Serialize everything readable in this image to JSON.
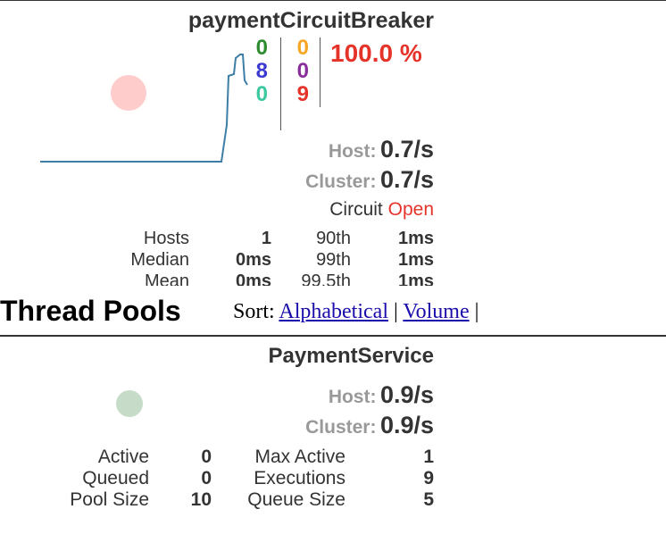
{
  "circuit_breaker": {
    "title": "paymentCircuitBreaker",
    "counts": {
      "success": "0",
      "short_circuited": "8",
      "bad_request": "0",
      "timeout": "0",
      "rejected": "0",
      "failure": "9"
    },
    "error_percentage": "100.0 %",
    "host_label": "Host:",
    "host_rate": "0.7/s",
    "cluster_label": "Cluster:",
    "cluster_rate": "0.7/s",
    "circuit_label": "Circuit",
    "circuit_status": "Open",
    "stats": {
      "hosts_label": "Hosts",
      "hosts_value": "1",
      "median_label": "Median",
      "median_value": "0ms",
      "mean_label": "Mean",
      "mean_value": "0ms",
      "p90_label": "90th",
      "p90_value": "1ms",
      "p99_label": "99th",
      "p99_value": "1ms",
      "p995_label": "99.5th",
      "p995_value": "1ms"
    },
    "colors": {
      "circle": "#ffcccc",
      "sparkline": "#3d7ea6",
      "error": "#e6332a"
    }
  },
  "thread_pools": {
    "heading": "Thread Pools",
    "sort_label": "Sort:",
    "sort_options": [
      "Alphabetical",
      "Volume"
    ],
    "separator": "|"
  },
  "thread_pool": {
    "title": "PaymentService",
    "host_label": "Host:",
    "host_rate": "0.9/s",
    "cluster_label": "Cluster:",
    "cluster_rate": "0.9/s",
    "stats": {
      "active_label": "Active",
      "active_value": "0",
      "queued_label": "Queued",
      "queued_value": "0",
      "pool_size_label": "Pool Size",
      "pool_size_value": "10",
      "max_active_label": "Max Active",
      "max_active_value": "1",
      "executions_label": "Executions",
      "executions_value": "9",
      "queue_size_label": "Queue Size",
      "queue_size_value": "5"
    },
    "colors": {
      "circle": "#c6dcc8"
    }
  }
}
